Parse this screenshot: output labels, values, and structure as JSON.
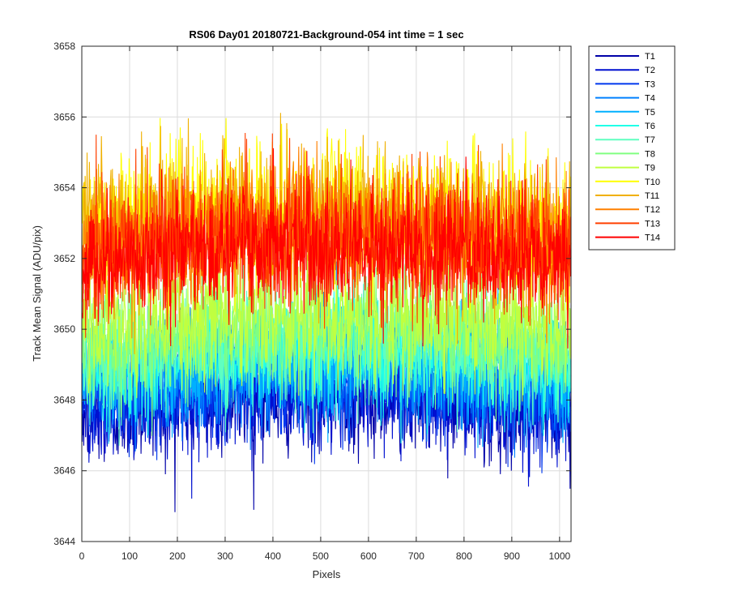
{
  "chart_data": {
    "type": "line",
    "title": "RS06 Day01 20180721-Background-054 int time = 1 sec",
    "xlabel": "Pixels",
    "ylabel": "Track Mean Signal (ADU/pix)",
    "xlim": [
      0,
      1024
    ],
    "ylim": [
      3644,
      3658
    ],
    "xticks": [
      "0",
      "100",
      "200",
      "300",
      "400",
      "500",
      "600",
      "700",
      "800",
      "900",
      "1000"
    ],
    "yticks": [
      "3644",
      "3646",
      "3648",
      "3650",
      "3652",
      "3654",
      "3656",
      "3658"
    ],
    "grid": true,
    "legend_position": "outside-top-right",
    "x": {
      "start": 1,
      "end": 1024,
      "step": 1
    },
    "series": [
      {
        "name": "T1",
        "color": "#0000a8",
        "mean": 3647.8,
        "noise_sd": 0.75
      },
      {
        "name": "T2",
        "color": "#0010d0",
        "mean": 3648.0,
        "noise_sd": 0.75
      },
      {
        "name": "T3",
        "color": "#0038ee",
        "mean": 3648.3,
        "noise_sd": 0.75
      },
      {
        "name": "T4",
        "color": "#0080ff",
        "mean": 3648.6,
        "noise_sd": 0.75
      },
      {
        "name": "T5",
        "color": "#00b0ff",
        "mean": 3648.9,
        "noise_sd": 0.75
      },
      {
        "name": "T6",
        "color": "#20ffe8",
        "mean": 3649.1,
        "noise_sd": 0.75
      },
      {
        "name": "T7",
        "color": "#60ffc0",
        "mean": 3649.4,
        "noise_sd": 0.75
      },
      {
        "name": "T8",
        "color": "#80ff80",
        "mean": 3649.7,
        "noise_sd": 0.75
      },
      {
        "name": "T9",
        "color": "#c0ff40",
        "mean": 3650.2,
        "noise_sd": 0.8
      },
      {
        "name": "T10",
        "color": "#ffff00",
        "mean": 3653.2,
        "noise_sd": 1.0
      },
      {
        "name": "T11",
        "color": "#f0b000",
        "mean": 3652.9,
        "noise_sd": 1.0
      },
      {
        "name": "T12",
        "color": "#ff8000",
        "mean": 3652.6,
        "noise_sd": 0.95
      },
      {
        "name": "T13",
        "color": "#ff4000",
        "mean": 3652.3,
        "noise_sd": 0.9
      },
      {
        "name": "T14",
        "color": "#ff0000",
        "mean": 3652.1,
        "noise_sd": 0.85
      }
    ]
  }
}
